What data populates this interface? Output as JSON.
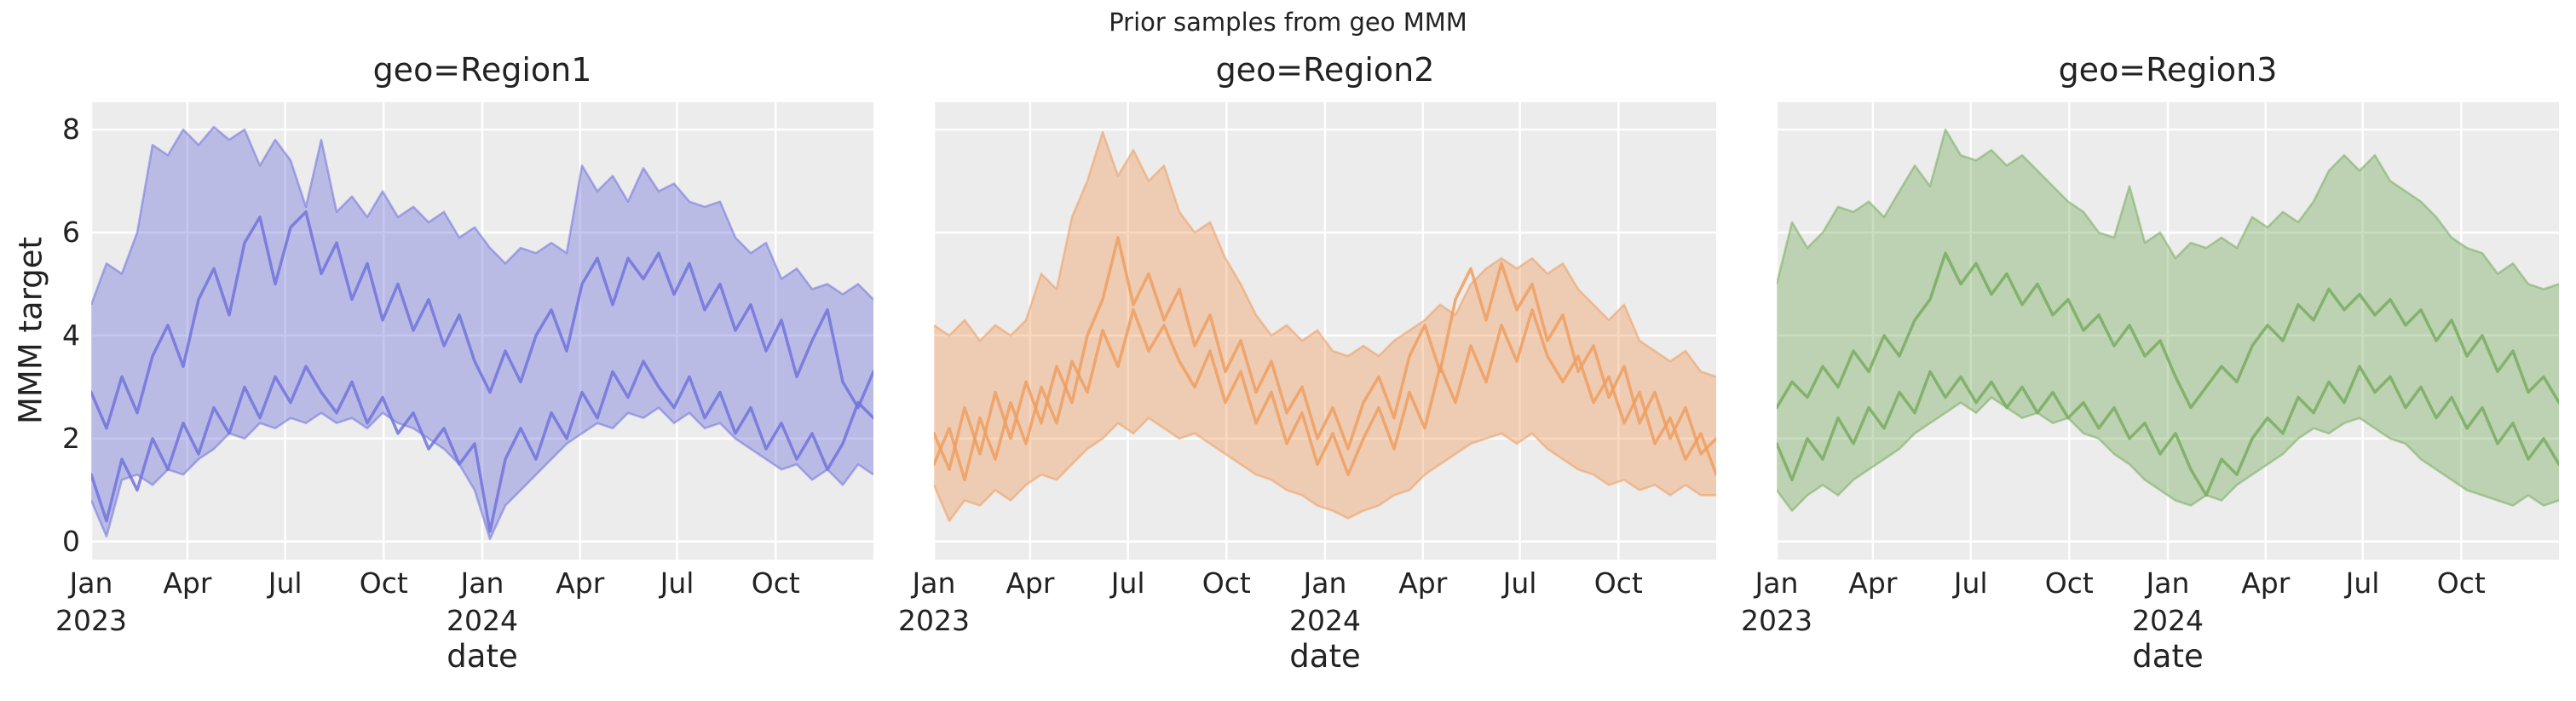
{
  "figure": {
    "suptitle": "Prior samples from geo MMM",
    "ylabel": "MMM target",
    "xlabel": "date",
    "x_ticks": [
      {
        "month": "Jan",
        "year": "2023"
      },
      {
        "month": "Apr",
        "year": ""
      },
      {
        "month": "Jul",
        "year": ""
      },
      {
        "month": "Oct",
        "year": ""
      },
      {
        "month": "Jan",
        "year": "2024"
      },
      {
        "month": "Apr",
        "year": ""
      },
      {
        "month": "Jul",
        "year": ""
      },
      {
        "month": "Oct",
        "year": ""
      }
    ],
    "colors": {
      "background": "#ffffff",
      "axes_background": "#ececec",
      "grid": "#ffffff",
      "text": "#222222",
      "region1": "#7173dc",
      "region2": "#ef9d5f",
      "region3": "#79ad5f"
    }
  },
  "chart_data": [
    {
      "type": "area",
      "title": "geo=Region1",
      "color": "#7173dc",
      "ylim": [
        -0.35,
        8.53
      ],
      "y_ticks": [
        0,
        2,
        4,
        6,
        8
      ],
      "x_range": [
        "Jan 2023",
        "Dec 2024"
      ],
      "band_upper": [
        4.6,
        5.4,
        5.2,
        6.0,
        7.7,
        7.5,
        8.0,
        7.7,
        8.05,
        7.8,
        8.0,
        7.3,
        7.8,
        7.4,
        6.5,
        7.8,
        6.4,
        6.7,
        6.3,
        6.8,
        6.3,
        6.5,
        6.2,
        6.4,
        5.9,
        6.1,
        5.7,
        5.4,
        5.7,
        5.6,
        5.8,
        5.6,
        7.3,
        6.8,
        7.1,
        6.6,
        7.25,
        6.8,
        6.95,
        6.6,
        6.5,
        6.6,
        5.9,
        5.6,
        5.8,
        5.1,
        5.3,
        4.9,
        5.0,
        4.8,
        5.0,
        4.7
      ],
      "band_lower": [
        0.8,
        0.1,
        1.2,
        1.3,
        1.1,
        1.4,
        1.3,
        1.6,
        1.8,
        2.1,
        2.0,
        2.3,
        2.2,
        2.4,
        2.3,
        2.5,
        2.3,
        2.4,
        2.2,
        2.5,
        2.3,
        2.2,
        2.0,
        1.8,
        1.5,
        1.0,
        0.05,
        0.7,
        1.0,
        1.3,
        1.6,
        1.9,
        2.1,
        2.3,
        2.2,
        2.5,
        2.4,
        2.6,
        2.3,
        2.5,
        2.2,
        2.3,
        2.0,
        1.8,
        1.6,
        1.4,
        1.5,
        1.2,
        1.4,
        1.1,
        1.5,
        1.3
      ],
      "samples": [
        [
          2.9,
          2.2,
          3.2,
          2.5,
          3.6,
          4.2,
          3.4,
          4.7,
          5.3,
          4.4,
          5.8,
          6.3,
          5.0,
          6.1,
          6.4,
          5.2,
          5.8,
          4.7,
          5.4,
          4.3,
          5.0,
          4.1,
          4.7,
          3.8,
          4.4,
          3.5,
          2.9,
          3.7,
          3.1,
          4.0,
          4.5,
          3.7,
          5.0,
          5.5,
          4.6,
          5.5,
          5.1,
          5.6,
          4.8,
          5.4,
          4.5,
          5.0,
          4.1,
          4.6,
          3.7,
          4.3,
          3.2,
          3.9,
          4.5,
          3.1,
          2.6,
          3.3
        ],
        [
          1.3,
          0.4,
          1.6,
          1.0,
          2.0,
          1.4,
          2.3,
          1.7,
          2.6,
          2.1,
          3.0,
          2.4,
          3.2,
          2.7,
          3.4,
          2.9,
          2.5,
          3.1,
          2.3,
          2.8,
          2.1,
          2.5,
          1.8,
          2.2,
          1.5,
          1.9,
          0.2,
          1.6,
          2.2,
          1.6,
          2.5,
          2.0,
          2.9,
          2.4,
          3.3,
          2.8,
          3.5,
          3.0,
          2.6,
          3.2,
          2.4,
          2.9,
          2.1,
          2.6,
          1.8,
          2.3,
          1.6,
          2.1,
          1.4,
          1.9,
          2.7,
          2.4
        ]
      ]
    },
    {
      "type": "area",
      "title": "geo=Region2",
      "color": "#ef9d5f",
      "ylim": [
        -0.35,
        8.53
      ],
      "y_ticks": [
        0,
        2,
        4,
        6,
        8
      ],
      "x_range": [
        "Jan 2023",
        "Dec 2024"
      ],
      "band_upper": [
        4.2,
        4.0,
        4.3,
        3.9,
        4.2,
        4.0,
        4.3,
        5.2,
        4.9,
        6.3,
        7.0,
        7.95,
        7.1,
        7.6,
        7.0,
        7.3,
        6.4,
        6.0,
        6.2,
        5.5,
        5.0,
        4.4,
        4.0,
        4.2,
        3.9,
        4.1,
        3.7,
        3.6,
        3.8,
        3.6,
        3.9,
        4.1,
        4.3,
        4.6,
        4.4,
        5.0,
        5.3,
        5.5,
        5.3,
        5.5,
        5.2,
        5.4,
        4.9,
        4.6,
        4.3,
        4.6,
        3.9,
        3.7,
        3.5,
        3.7,
        3.3,
        3.2
      ],
      "band_lower": [
        1.1,
        0.4,
        0.8,
        0.7,
        1.0,
        0.8,
        1.1,
        1.3,
        1.2,
        1.5,
        1.8,
        2.0,
        2.3,
        2.1,
        2.4,
        2.2,
        2.0,
        2.1,
        1.9,
        1.7,
        1.5,
        1.3,
        1.2,
        1.0,
        0.9,
        0.7,
        0.6,
        0.45,
        0.6,
        0.7,
        0.9,
        1.0,
        1.3,
        1.5,
        1.7,
        1.9,
        2.0,
        2.1,
        1.9,
        2.1,
        1.8,
        1.6,
        1.4,
        1.3,
        1.1,
        1.2,
        1.0,
        1.1,
        0.9,
        1.1,
        0.9,
        0.9
      ],
      "samples": [
        [
          2.1,
          1.4,
          2.6,
          1.7,
          2.9,
          2.0,
          3.1,
          2.3,
          3.4,
          2.7,
          4.0,
          4.7,
          5.9,
          4.6,
          5.2,
          4.3,
          4.9,
          3.8,
          4.4,
          3.3,
          3.9,
          2.9,
          3.5,
          2.5,
          3.0,
          2.0,
          2.6,
          1.8,
          2.7,
          3.2,
          2.4,
          3.6,
          4.2,
          3.3,
          4.7,
          5.3,
          4.3,
          5.4,
          4.5,
          5.0,
          3.9,
          4.4,
          3.3,
          3.8,
          2.8,
          3.4,
          2.3,
          2.9,
          2.0,
          2.6,
          1.7,
          2.0
        ],
        [
          1.5,
          2.2,
          1.2,
          2.4,
          1.6,
          2.7,
          1.9,
          3.0,
          2.3,
          3.5,
          2.9,
          4.1,
          3.4,
          4.5,
          3.7,
          4.2,
          3.5,
          3.0,
          3.7,
          2.7,
          3.3,
          2.3,
          2.9,
          1.9,
          2.5,
          1.5,
          2.1,
          1.3,
          2.0,
          2.6,
          1.8,
          2.9,
          2.2,
          3.4,
          2.7,
          3.8,
          3.1,
          4.2,
          3.5,
          4.5,
          3.6,
          3.1,
          3.6,
          2.7,
          3.2,
          2.3,
          2.9,
          1.9,
          2.4,
          1.6,
          2.1,
          1.3
        ]
      ]
    },
    {
      "type": "area",
      "title": "geo=Region3",
      "color": "#79ad5f",
      "ylim": [
        -0.35,
        8.53
      ],
      "y_ticks": [
        0,
        2,
        4,
        6,
        8
      ],
      "x_range": [
        "Jan 2023",
        "Dec 2024"
      ],
      "band_upper": [
        5.0,
        6.2,
        5.7,
        6.0,
        6.5,
        6.4,
        6.6,
        6.3,
        6.8,
        7.3,
        6.9,
        8.0,
        7.5,
        7.4,
        7.6,
        7.3,
        7.5,
        7.2,
        6.9,
        6.6,
        6.4,
        6.0,
        5.9,
        6.9,
        5.8,
        6.0,
        5.5,
        5.8,
        5.7,
        5.9,
        5.7,
        6.3,
        6.1,
        6.4,
        6.2,
        6.6,
        7.2,
        7.5,
        7.2,
        7.5,
        7.0,
        6.8,
        6.6,
        6.3,
        5.9,
        5.7,
        5.6,
        5.2,
        5.4,
        5.0,
        4.9,
        5.0
      ],
      "band_lower": [
        1.0,
        0.6,
        0.9,
        1.1,
        0.9,
        1.2,
        1.4,
        1.6,
        1.8,
        2.1,
        2.3,
        2.5,
        2.7,
        2.5,
        2.8,
        2.6,
        2.4,
        2.5,
        2.3,
        2.4,
        2.1,
        2.0,
        1.7,
        1.5,
        1.2,
        1.0,
        0.8,
        0.7,
        0.9,
        0.8,
        1.1,
        1.3,
        1.5,
        1.7,
        2.0,
        2.2,
        2.1,
        2.3,
        2.4,
        2.2,
        2.0,
        1.9,
        1.6,
        1.4,
        1.2,
        1.0,
        0.9,
        0.8,
        0.7,
        0.9,
        0.7,
        0.8
      ],
      "samples": [
        [
          2.6,
          3.1,
          2.8,
          3.4,
          3.0,
          3.7,
          3.3,
          4.0,
          3.6,
          4.3,
          4.7,
          5.6,
          5.0,
          5.4,
          4.8,
          5.2,
          4.6,
          5.0,
          4.4,
          4.7,
          4.1,
          4.4,
          3.8,
          4.2,
          3.6,
          3.9,
          3.2,
          2.6,
          3.0,
          3.4,
          3.1,
          3.8,
          4.2,
          3.9,
          4.6,
          4.3,
          4.9,
          4.5,
          4.8,
          4.4,
          4.7,
          4.2,
          4.5,
          3.9,
          4.3,
          3.6,
          4.0,
          3.3,
          3.7,
          2.9,
          3.2,
          2.7
        ],
        [
          1.9,
          1.2,
          2.0,
          1.6,
          2.4,
          1.9,
          2.6,
          2.2,
          2.9,
          2.5,
          3.3,
          2.8,
          3.2,
          2.7,
          3.1,
          2.6,
          3.0,
          2.5,
          2.9,
          2.4,
          2.7,
          2.2,
          2.6,
          2.0,
          2.3,
          1.7,
          2.1,
          1.4,
          0.9,
          1.6,
          1.3,
          2.0,
          2.4,
          2.1,
          2.8,
          2.5,
          3.1,
          2.7,
          3.4,
          2.9,
          3.2,
          2.6,
          3.0,
          2.4,
          2.8,
          2.2,
          2.6,
          1.9,
          2.3,
          1.6,
          2.0,
          1.5
        ]
      ]
    }
  ]
}
